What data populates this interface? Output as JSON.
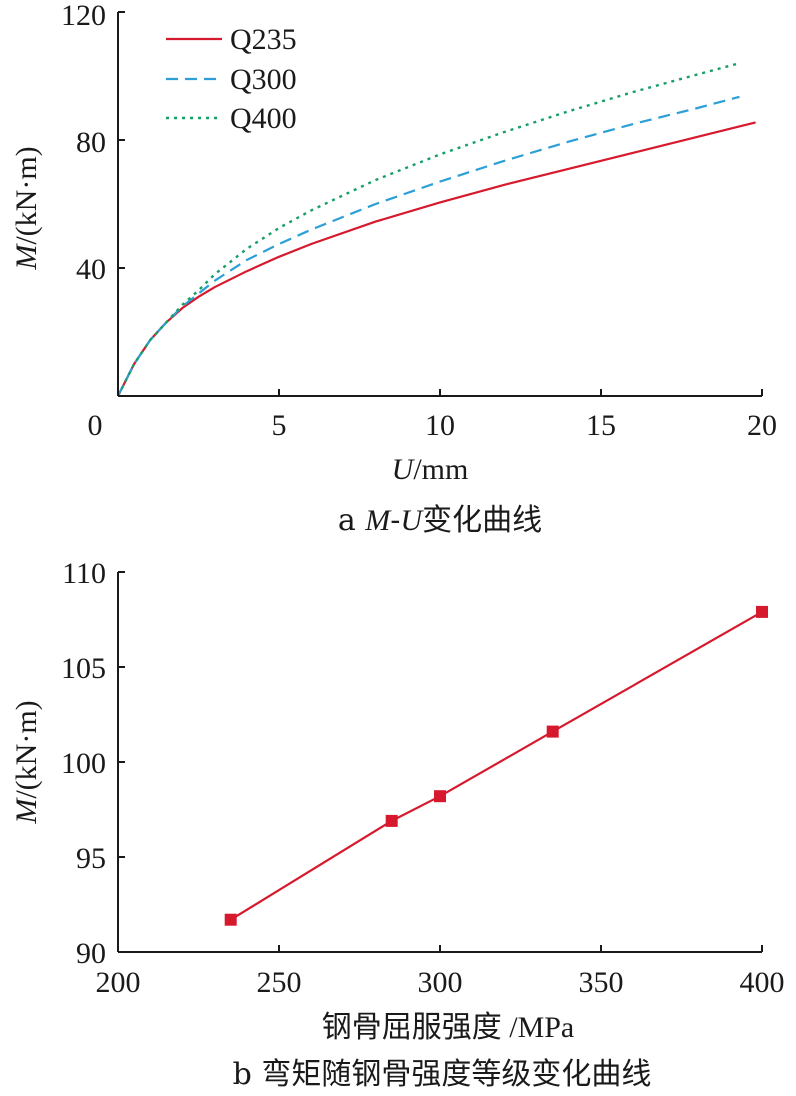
{
  "chart_data": [
    {
      "type": "line",
      "caption": {
        "prefix": "a ",
        "var1": "M",
        "dash": "-",
        "var2": "U",
        "rest": "变化曲线"
      },
      "xlabel": {
        "var": "U",
        "unit": "/mm"
      },
      "ylabel": {
        "var": "M",
        "unit": "/(kN·m)"
      },
      "xlim": [
        0,
        20
      ],
      "ylim": [
        0,
        120
      ],
      "xticks": [
        0,
        5,
        10,
        15,
        20
      ],
      "xtick_labels": [
        "0",
        "5",
        "10",
        "15",
        "20"
      ],
      "yticks": [
        40,
        80,
        120
      ],
      "ytick_labels": [
        "40",
        "80",
        "120"
      ],
      "legend_position": "top-left",
      "series": [
        {
          "name": "Q235",
          "color": "#d7192e",
          "style": "solid",
          "x": [
            0,
            0.5,
            1,
            1.5,
            2,
            2.5,
            3,
            4,
            5,
            6,
            8,
            10,
            12,
            14,
            16,
            18,
            19.8
          ],
          "y": [
            0,
            10,
            17.5,
            23,
            27.5,
            31,
            34,
            39,
            43.5,
            47.5,
            54.5,
            60.5,
            66,
            71,
            76,
            81,
            85.5
          ]
        },
        {
          "name": "Q300",
          "color": "#2b9fd6",
          "style": "dashed",
          "x": [
            0,
            0.5,
            1,
            1.5,
            2,
            2.5,
            3,
            4,
            5,
            6,
            8,
            10,
            12,
            14,
            16,
            18,
            19.3
          ],
          "y": [
            0,
            10,
            17.5,
            23,
            28,
            32,
            36,
            42.5,
            47.5,
            52,
            60,
            67,
            73.5,
            79.5,
            85,
            90,
            93.5
          ]
        },
        {
          "name": "Q400",
          "color": "#16a067",
          "style": "dotted",
          "x": [
            0,
            0.5,
            1,
            1.5,
            2,
            2.5,
            3,
            4,
            5,
            6,
            8,
            10,
            12,
            14,
            16,
            18,
            19.3
          ],
          "y": [
            0,
            10,
            17.5,
            23,
            28.5,
            33,
            38,
            46,
            52.5,
            58,
            67.5,
            75.5,
            82.5,
            89,
            95,
            100.5,
            104
          ]
        }
      ]
    },
    {
      "type": "line",
      "caption": {
        "prefix": "b ",
        "text": "弯矩随钢骨强度等级变化曲线"
      },
      "xlabel": {
        "text": "钢骨屈服强度 /MPa"
      },
      "ylabel": {
        "var": "M",
        "unit": "/(kN·m)"
      },
      "xlim": [
        200,
        400
      ],
      "ylim": [
        90,
        110
      ],
      "xticks": [
        200,
        250,
        300,
        350,
        400
      ],
      "xtick_labels": [
        "200",
        "250",
        "300",
        "350",
        "400"
      ],
      "yticks": [
        90,
        95,
        100,
        105,
        110
      ],
      "ytick_labels": [
        "90",
        "95",
        "100",
        "105",
        "110"
      ],
      "marker": "square",
      "series": [
        {
          "color": "#d7192e",
          "x": [
            235,
            285,
            300,
            335,
            400
          ],
          "y": [
            91.7,
            96.9,
            98.2,
            101.6,
            107.9
          ]
        }
      ]
    }
  ]
}
